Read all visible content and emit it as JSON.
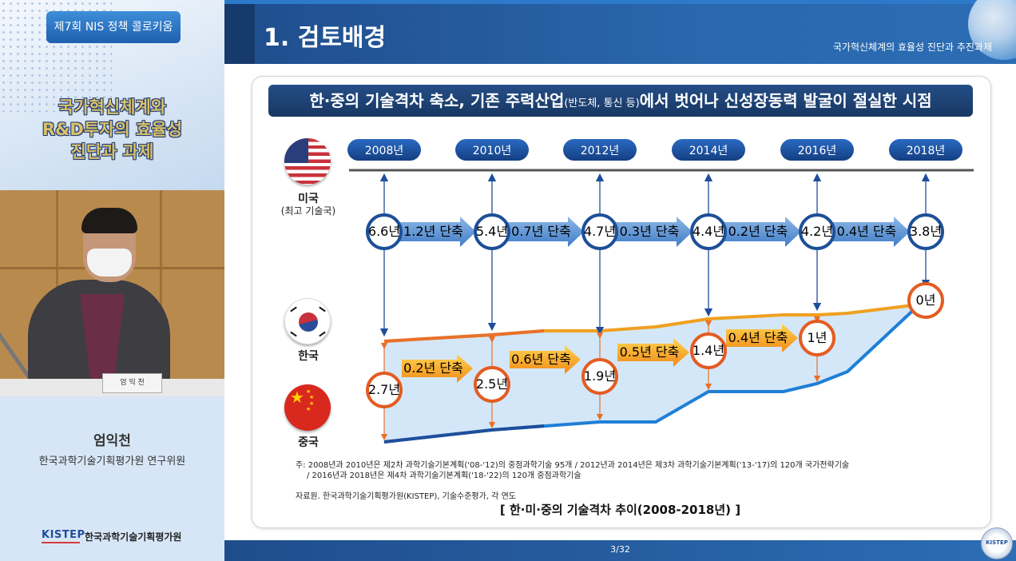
{
  "left_panel": {
    "event_label": "제7회 NIS 정책 콜로키움",
    "title_lines": [
      "국가혁신체계와",
      "R&D투자의 효율성",
      "진단과 과제"
    ],
    "nameplate": "엄 익 천",
    "speaker_name": "엄익천",
    "speaker_org": "한국과학기술기획평가원 연구위원",
    "logo_text": "KISTEP",
    "logo_org": "한국과학기술기획평가원"
  },
  "slide": {
    "title": "1. 검토배경",
    "header_subtitle": "국가혁신체계의 효율성 진단과 추진과제",
    "banner_main_1": "한·중의 기술격차 축소, 기존 주력산업",
    "banner_small": "(반도체, 통신 등)",
    "banner_main_2": "에서 벗어나 신성장동력 발굴이 절실한 시점",
    "page": "3/32",
    "seal_text": "KISTEP"
  },
  "chart_data": {
    "type": "diagram",
    "years": [
      "2008년",
      "2010년",
      "2012년",
      "2014년",
      "2016년",
      "2018년"
    ],
    "countries": {
      "us": "미국",
      "us_sub": "(최고 기술국)",
      "kr": "한국",
      "cn": "중국"
    },
    "us_china_gap": [
      "6.6년",
      "5.4년",
      "4.7년",
      "4.4년",
      "4.2년",
      "3.8년"
    ],
    "us_china_reduction": [
      "1.2년 단축",
      "0.7년 단축",
      "0.3년 단축",
      "0.2년 단축",
      "0.4년 단축"
    ],
    "korea_china_gap": [
      "2.7년",
      "2.5년",
      "1.9년",
      "1.4년",
      "1년",
      "0년"
    ],
    "korea_china_reduction": [
      "0.2년 단축",
      "0.6년 단축",
      "0.5년 단축",
      "0.4년 단축"
    ],
    "colors": {
      "korea_line": "#f0a020",
      "china_line": "#1e7fd6",
      "band": "#cfe4f7",
      "year_pill": "#1d57a8"
    }
  },
  "notes": {
    "note_1": "주:  2008년과 2010년은 제2차 과학기술기본계획('08-'12)의 중점과학기술 95개 / 2012년과 2014년은 제3차 과학기술기본계획('13-'17)의 120개 국가전략기술",
    "note_2": "/ 2016년과 2018년은 제4차 과학기술기본계획('18-'22)의 120개 중점과학기술",
    "source": "자료원. 한국과학기술기획평가원(KISTEP), 기술수준평가, 각 연도",
    "caption": "[ 한·미·중의 기술격차 추이(2008-2018년) ]"
  }
}
